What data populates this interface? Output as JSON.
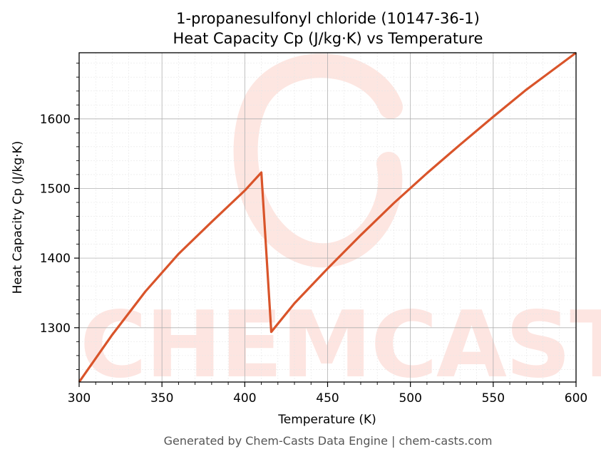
{
  "chart_data": {
    "type": "line",
    "title_line1": "1-propanesulfonyl chloride (10147-36-1)",
    "title_line2": "Heat Capacity Cp (J/kg·K) vs Temperature",
    "xlabel": "Temperature (K)",
    "ylabel": "Heat Capacity Cp (J/kg·K)",
    "xlim": [
      300,
      600
    ],
    "ylim": [
      1222,
      1695
    ],
    "xticks": [
      300,
      350,
      400,
      450,
      500,
      550,
      600
    ],
    "yticks": [
      1300,
      1400,
      1500,
      1600
    ],
    "grid": true,
    "line_color": "#d9542a",
    "series": [
      {
        "x": [
          300,
          320,
          340,
          360,
          380,
          400,
          410,
          416,
          430,
          450,
          470,
          490,
          510,
          530,
          550,
          570,
          600
        ],
        "y": [
          1222,
          1290,
          1352,
          1406,
          1452,
          1497,
          1523,
          1294,
          1335,
          1385,
          1433,
          1479,
          1522,
          1563,
          1603,
          1642,
          1695
        ]
      }
    ]
  },
  "watermark": "CHEMCASTS",
  "footer": "Generated by Chem-Casts Data Engine | chem-casts.com"
}
